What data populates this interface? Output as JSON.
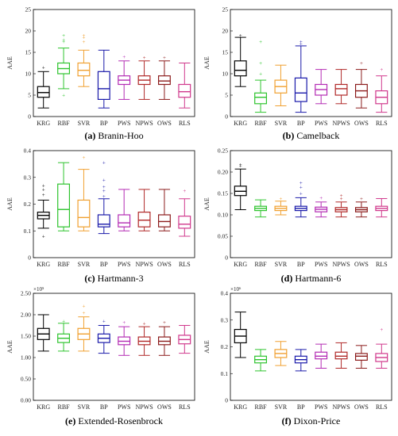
{
  "categories": [
    "KRG",
    "RBF",
    "SVR",
    "BP",
    "PWS",
    "NPWS",
    "OWS",
    "RLS"
  ],
  "colors": {
    "KRG": "#000000",
    "RBF": "#2ec42e",
    "SVR": "#f0a030",
    "BP": "#1a1aaa",
    "PWS": "#b42cb4",
    "NPWS": "#b02828",
    "OWS": "#8c1c1c",
    "RLS": "#d0388c"
  },
  "chart_data": [
    {
      "type": "box",
      "ylabel": "AAE",
      "ylim": [
        0,
        25
      ],
      "yticks": [
        "0",
        "5",
        "10",
        "15",
        "20",
        "25"
      ],
      "multiplier": "",
      "caption_letter": "(a)",
      "caption_name": "Branin-Hoo",
      "boxes": [
        {
          "name": "KRG",
          "min": 2.0,
          "q1": 4.5,
          "median": 5.6,
          "q3": 7.0,
          "max": 10.5,
          "outliers": [
            11.5
          ]
        },
        {
          "name": "RBF",
          "min": 6.5,
          "q1": 10.0,
          "median": 11.2,
          "q3": 12.5,
          "max": 16.0,
          "outliers": [
            5.0,
            17.5,
            18.0,
            19.0
          ]
        },
        {
          "name": "SVR",
          "min": 7.0,
          "q1": 9.5,
          "median": 10.8,
          "q3": 12.5,
          "max": 15.5,
          "outliers": [
            17.5,
            18.5,
            19.0
          ]
        },
        {
          "name": "BP",
          "min": 2.0,
          "q1": 4.0,
          "median": 6.5,
          "q3": 10.5,
          "max": 15.5,
          "outliers": []
        },
        {
          "name": "PWS",
          "min": 4.0,
          "q1": 7.5,
          "median": 8.5,
          "q3": 9.5,
          "max": 13.0,
          "outliers": [
            14.0
          ]
        },
        {
          "name": "NPWS",
          "min": 4.0,
          "q1": 7.5,
          "median": 8.5,
          "q3": 9.5,
          "max": 13.0,
          "outliers": [
            13.8
          ]
        },
        {
          "name": "OWS",
          "min": 4.0,
          "q1": 7.5,
          "median": 8.3,
          "q3": 9.5,
          "max": 13.0,
          "outliers": [
            13.8
          ]
        },
        {
          "name": "RLS",
          "min": 2.0,
          "q1": 4.5,
          "median": 5.8,
          "q3": 7.5,
          "max": 12.5,
          "outliers": []
        }
      ]
    },
    {
      "type": "box",
      "ylabel": "AAE",
      "ylim": [
        0,
        25
      ],
      "yticks": [
        "0",
        "5",
        "10",
        "15",
        "20",
        "25"
      ],
      "multiplier": "",
      "caption_letter": "(b)",
      "caption_name": "Camelback",
      "boxes": [
        {
          "name": "KRG",
          "min": 7.0,
          "q1": 9.5,
          "median": 10.8,
          "q3": 13.0,
          "max": 18.5,
          "outliers": [
            19.0
          ]
        },
        {
          "name": "RBF",
          "min": 1.0,
          "q1": 3.0,
          "median": 4.5,
          "q3": 5.5,
          "max": 8.5,
          "outliers": [
            10.0,
            12.5,
            17.5
          ]
        },
        {
          "name": "SVR",
          "min": 2.5,
          "q1": 5.5,
          "median": 7.0,
          "q3": 8.5,
          "max": 12.0,
          "outliers": []
        },
        {
          "name": "BP",
          "min": 1.0,
          "q1": 3.5,
          "median": 5.5,
          "q3": 9.0,
          "max": 16.5,
          "outliers": [
            17.0,
            17.5
          ]
        },
        {
          "name": "PWS",
          "min": 3.0,
          "q1": 5.0,
          "median": 6.3,
          "q3": 7.5,
          "max": 11.0,
          "outliers": []
        },
        {
          "name": "NPWS",
          "min": 3.0,
          "q1": 5.0,
          "median": 6.5,
          "q3": 7.5,
          "max": 11.0,
          "outliers": []
        },
        {
          "name": "OWS",
          "min": 2.0,
          "q1": 4.5,
          "median": 6.0,
          "q3": 7.5,
          "max": 11.0,
          "outliers": [
            12.5
          ]
        },
        {
          "name": "RLS",
          "min": 1.0,
          "q1": 3.0,
          "median": 4.5,
          "q3": 6.0,
          "max": 9.5,
          "outliers": [
            11.0
          ]
        }
      ]
    },
    {
      "type": "box",
      "ylabel": "AAE",
      "ylim": [
        0,
        0.4
      ],
      "yticks": [
        "0",
        "0.1",
        "0.2",
        "0.3",
        "0.4"
      ],
      "multiplier": "",
      "caption_letter": "(c)",
      "caption_name": "Hartmann-3",
      "boxes": [
        {
          "name": "KRG",
          "min": 0.11,
          "q1": 0.145,
          "median": 0.158,
          "q3": 0.17,
          "max": 0.215,
          "outliers": [
            0.08,
            0.235,
            0.255,
            0.27
          ]
        },
        {
          "name": "RBF",
          "min": 0.1,
          "q1": 0.115,
          "median": 0.18,
          "q3": 0.275,
          "max": 0.355,
          "outliers": []
        },
        {
          "name": "SVR",
          "min": 0.1,
          "q1": 0.115,
          "median": 0.15,
          "q3": 0.215,
          "max": 0.33,
          "outliers": [
            0.375
          ]
        },
        {
          "name": "BP",
          "min": 0.09,
          "q1": 0.115,
          "median": 0.125,
          "q3": 0.16,
          "max": 0.22,
          "outliers": [
            0.23,
            0.25,
            0.265,
            0.29,
            0.355
          ]
        },
        {
          "name": "PWS",
          "min": 0.1,
          "q1": 0.115,
          "median": 0.13,
          "q3": 0.16,
          "max": 0.255,
          "outliers": []
        },
        {
          "name": "NPWS",
          "min": 0.1,
          "q1": 0.115,
          "median": 0.14,
          "q3": 0.17,
          "max": 0.255,
          "outliers": []
        },
        {
          "name": "OWS",
          "min": 0.1,
          "q1": 0.115,
          "median": 0.135,
          "q3": 0.16,
          "max": 0.255,
          "outliers": []
        },
        {
          "name": "RLS",
          "min": 0.08,
          "q1": 0.11,
          "median": 0.125,
          "q3": 0.155,
          "max": 0.22,
          "outliers": [
            0.25
          ]
        }
      ]
    },
    {
      "type": "box",
      "ylabel": "AAE",
      "ylim": [
        0,
        0.25
      ],
      "yticks": [
        "0",
        "0.05",
        "0.10",
        "0.15",
        "0.20",
        "0.25"
      ],
      "multiplier": "",
      "caption_letter": "(d)",
      "caption_name": "Hartmann-6",
      "boxes": [
        {
          "name": "KRG",
          "min": 0.112,
          "q1": 0.145,
          "median": 0.155,
          "q3": 0.167,
          "max": 0.207,
          "outliers": [
            0.215,
            0.218
          ]
        },
        {
          "name": "RBF",
          "min": 0.095,
          "q1": 0.11,
          "median": 0.115,
          "q3": 0.12,
          "max": 0.135,
          "outliers": []
        },
        {
          "name": "SVR",
          "min": 0.1,
          "q1": 0.11,
          "median": 0.115,
          "q3": 0.12,
          "max": 0.132,
          "outliers": [
            0.138
          ]
        },
        {
          "name": "BP",
          "min": 0.095,
          "q1": 0.11,
          "median": 0.115,
          "q3": 0.12,
          "max": 0.14,
          "outliers": [
            0.15,
            0.165,
            0.175
          ]
        },
        {
          "name": "PWS",
          "min": 0.095,
          "q1": 0.107,
          "median": 0.113,
          "q3": 0.118,
          "max": 0.13,
          "outliers": [
            0.14
          ]
        },
        {
          "name": "NPWS",
          "min": 0.095,
          "q1": 0.107,
          "median": 0.112,
          "q3": 0.117,
          "max": 0.13,
          "outliers": [
            0.138,
            0.145
          ]
        },
        {
          "name": "OWS",
          "min": 0.095,
          "q1": 0.107,
          "median": 0.112,
          "q3": 0.117,
          "max": 0.13,
          "outliers": [
            0.138
          ]
        },
        {
          "name": "RLS",
          "min": 0.095,
          "q1": 0.11,
          "median": 0.115,
          "q3": 0.12,
          "max": 0.138,
          "outliers": []
        }
      ]
    },
    {
      "type": "box",
      "ylabel": "AAE",
      "ylim": [
        0,
        2.5
      ],
      "yticks": [
        "0.00",
        "0.50",
        "1.00",
        "1.50",
        "2.00",
        "2.50"
      ],
      "multiplier": "×10⁵",
      "caption_letter": "(e)",
      "caption_name": "Extended-Rosenbrock",
      "boxes": [
        {
          "name": "KRG",
          "min": 1.15,
          "q1": 1.42,
          "median": 1.55,
          "q3": 1.68,
          "max": 2.0,
          "outliers": []
        },
        {
          "name": "RBF",
          "min": 1.15,
          "q1": 1.35,
          "median": 1.45,
          "q3": 1.55,
          "max": 1.8,
          "outliers": [
            1.85
          ]
        },
        {
          "name": "SVR",
          "min": 1.15,
          "q1": 1.42,
          "median": 1.55,
          "q3": 1.68,
          "max": 1.95,
          "outliers": [
            2.05,
            2.2
          ]
        },
        {
          "name": "BP",
          "min": 1.1,
          "q1": 1.35,
          "median": 1.45,
          "q3": 1.55,
          "max": 1.75,
          "outliers": [
            1.85
          ]
        },
        {
          "name": "PWS",
          "min": 1.05,
          "q1": 1.3,
          "median": 1.38,
          "q3": 1.48,
          "max": 1.72,
          "outliers": [
            1.82
          ]
        },
        {
          "name": "NPWS",
          "min": 1.05,
          "q1": 1.3,
          "median": 1.38,
          "q3": 1.48,
          "max": 1.72,
          "outliers": [
            1.8
          ]
        },
        {
          "name": "OWS",
          "min": 1.05,
          "q1": 1.3,
          "median": 1.38,
          "q3": 1.48,
          "max": 1.72,
          "outliers": [
            1.82
          ]
        },
        {
          "name": "RLS",
          "min": 1.1,
          "q1": 1.32,
          "median": 1.42,
          "q3": 1.52,
          "max": 1.75,
          "outliers": []
        }
      ]
    },
    {
      "type": "box",
      "ylabel": "AAE",
      "ylim": [
        0,
        0.4
      ],
      "yticks": [
        "0",
        "0.1",
        "0.2",
        "0.3",
        "0.4"
      ],
      "multiplier": "×10⁶",
      "caption_letter": "(f)",
      "caption_name": "Dixon-Price",
      "boxes": [
        {
          "name": "KRG",
          "min": 0.16,
          "q1": 0.215,
          "median": 0.24,
          "q3": 0.265,
          "max": 0.33,
          "outliers": []
        },
        {
          "name": "RBF",
          "min": 0.11,
          "q1": 0.14,
          "median": 0.152,
          "q3": 0.165,
          "max": 0.19,
          "outliers": []
        },
        {
          "name": "SVR",
          "min": 0.13,
          "q1": 0.16,
          "median": 0.175,
          "q3": 0.19,
          "max": 0.22,
          "outliers": []
        },
        {
          "name": "BP",
          "min": 0.11,
          "q1": 0.14,
          "median": 0.152,
          "q3": 0.165,
          "max": 0.19,
          "outliers": []
        },
        {
          "name": "PWS",
          "min": 0.12,
          "q1": 0.155,
          "median": 0.165,
          "q3": 0.18,
          "max": 0.21,
          "outliers": []
        },
        {
          "name": "NPWS",
          "min": 0.12,
          "q1": 0.155,
          "median": 0.165,
          "q3": 0.18,
          "max": 0.215,
          "outliers": []
        },
        {
          "name": "OWS",
          "min": 0.12,
          "q1": 0.15,
          "median": 0.165,
          "q3": 0.175,
          "max": 0.205,
          "outliers": []
        },
        {
          "name": "RLS",
          "min": 0.12,
          "q1": 0.145,
          "median": 0.16,
          "q3": 0.175,
          "max": 0.21,
          "outliers": [
            0.265
          ]
        }
      ]
    }
  ]
}
